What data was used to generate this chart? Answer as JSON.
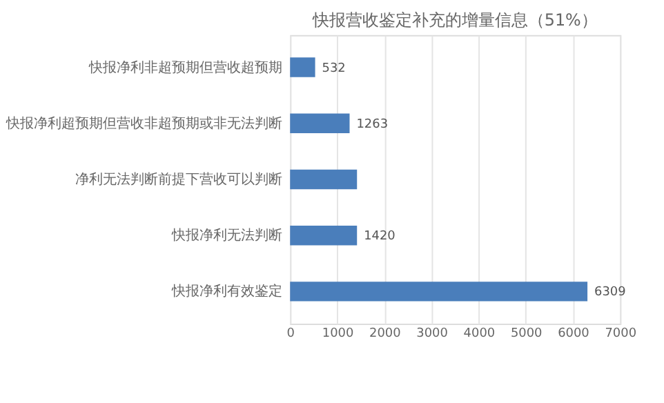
{
  "chart_data": {
    "type": "bar",
    "orientation": "horizontal",
    "title": "快报营收鉴定补充的增量信息（51%）",
    "categories": [
      "快报净利非超预期但营收超预期",
      "快报净利超预期但营收非超预期或非无法判断",
      "净利无法判断前提下营收可以判断",
      "快报净利无法判断",
      "快报净利有效鉴定"
    ],
    "values": [
      532,
      1263,
      1420,
      1420,
      6309
    ],
    "value_labels": [
      "532",
      "1263",
      null,
      "1420",
      "6309"
    ],
    "color": "#4a7ebb",
    "xlim": [
      0,
      7000
    ],
    "xticks": [
      0,
      1000,
      2000,
      3000,
      4000,
      5000,
      6000,
      7000
    ],
    "grid": "x"
  }
}
